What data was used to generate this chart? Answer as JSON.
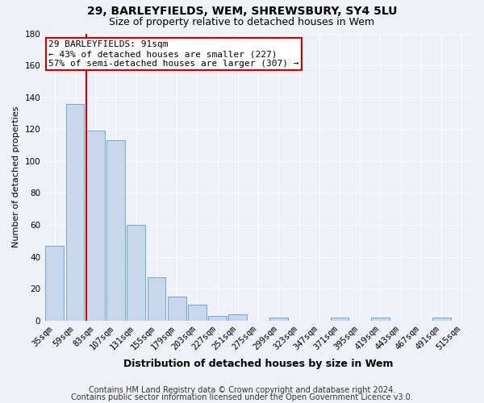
{
  "title1": "29, BARLEYFIELDS, WEM, SHREWSBURY, SY4 5LU",
  "title2": "Size of property relative to detached houses in Wem",
  "xlabel": "Distribution of detached houses by size in Wem",
  "ylabel": "Number of detached properties",
  "categories": [
    "35sqm",
    "59sqm",
    "83sqm",
    "107sqm",
    "131sqm",
    "155sqm",
    "179sqm",
    "203sqm",
    "227sqm",
    "251sqm",
    "275sqm",
    "299sqm",
    "323sqm",
    "347sqm",
    "371sqm",
    "395sqm",
    "419sqm",
    "443sqm",
    "467sqm",
    "491sqm",
    "515sqm"
  ],
  "values": [
    47,
    136,
    119,
    113,
    60,
    27,
    15,
    10,
    3,
    4,
    0,
    2,
    0,
    0,
    2,
    0,
    2,
    0,
    0,
    2,
    0
  ],
  "bar_color": "#c8d8ea",
  "bar_edge_color": "#6aaad4",
  "red_line_index": 2,
  "annotation_text": "29 BARLEYFIELDS: 91sqm\n← 43% of detached houses are smaller (227)\n57% of semi-detached houses are larger (307) →",
  "annotation_box_color": "white",
  "annotation_box_edge_color": "#cc0000",
  "red_line_color": "#cc0000",
  "ylim": [
    0,
    180
  ],
  "yticks": [
    0,
    20,
    40,
    60,
    80,
    100,
    120,
    140,
    160,
    180
  ],
  "footer1": "Contains HM Land Registry data © Crown copyright and database right 2024.",
  "footer2": "Contains public sector information licensed under the Open Government Licence v3.0.",
  "background_color": "#eef2f8",
  "grid_color": "white",
  "title1_fontsize": 10,
  "title2_fontsize": 9,
  "xlabel_fontsize": 9,
  "ylabel_fontsize": 8,
  "tick_fontsize": 7.5,
  "footer_fontsize": 7,
  "ann_fontsize": 8
}
